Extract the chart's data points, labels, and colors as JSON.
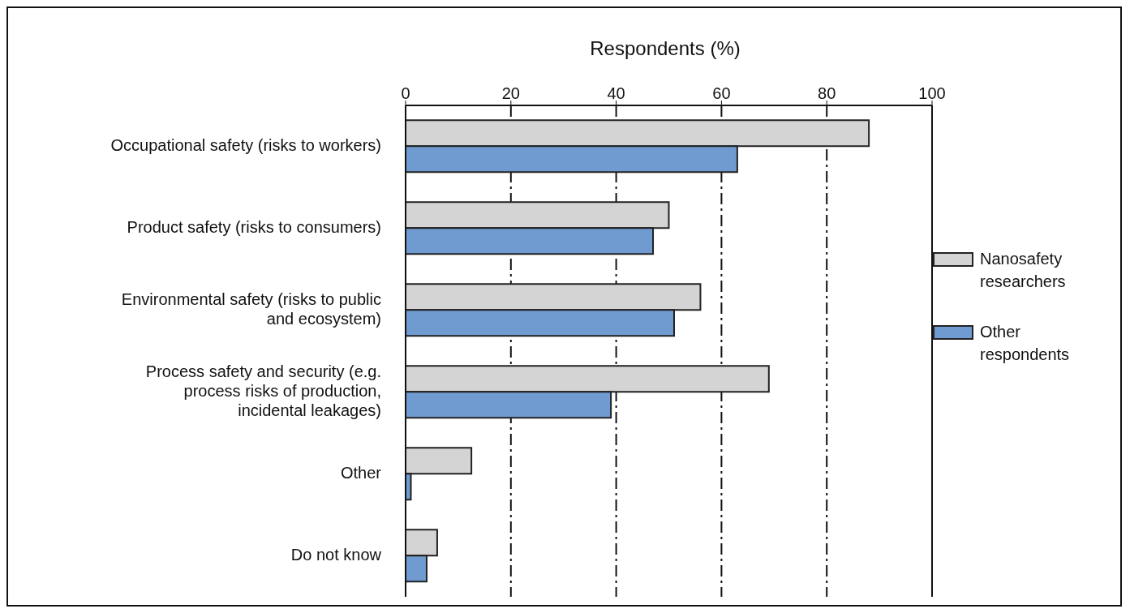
{
  "chart_data": {
    "type": "bar",
    "orientation": "horizontal",
    "xlabel": "Respondents (%)",
    "categories": [
      "Occupational safety (risks to workers)",
      "Product safety (risks to consumers)",
      "Environmental safety (risks to public and ecosystem)",
      "Process safety and security (e.g. process risks of production, incidental leakages)",
      "Other",
      "Do not know"
    ],
    "series": [
      {
        "name": "Nanosafety researchers",
        "color": "#d4d4d4",
        "values": [
          88,
          50,
          56,
          69,
          12.5,
          6
        ]
      },
      {
        "name": "Other respondents",
        "color": "#6f9bd1",
        "values": [
          63,
          47,
          51,
          39,
          1,
          4
        ]
      }
    ],
    "xlim": [
      0,
      100
    ],
    "xticks": [
      0,
      20,
      40,
      60,
      80,
      100
    ],
    "grid": "x",
    "legend": "right"
  }
}
